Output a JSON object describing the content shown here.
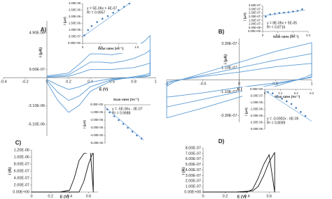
{
  "chart_data": [
    {
      "type": "line",
      "panel": "A)",
      "xlabel": "E (V)",
      "ylabel": "i (μA)",
      "xlim": [
        -0.4,
        1
      ],
      "xticks": [
        -0.4,
        -0.2,
        0,
        0.2,
        0.4,
        0.6,
        0.8,
        1
      ],
      "ylim": [
        -6.4e-06,
        6.2e-06
      ],
      "yticks": [
        {
          "value": 4.9e-06,
          "label": "4.90E-06"
        },
        {
          "value": 9e-07,
          "label": "9.00E-07"
        },
        {
          "value": -3.1e-06,
          "label": "-3.10E-06"
        },
        {
          "value": -5.1e-06,
          "label": "-5.10E-06"
        }
      ],
      "series": [
        {
          "color": "#5b9bd5",
          "x": [
            0,
            0.2,
            0.3,
            0.4,
            0.5,
            0.6,
            0.7,
            0.8,
            0.9,
            0.95,
            0.95,
            0.9,
            0.8,
            0.6,
            0.4,
            0.3,
            0.2,
            0.1,
            0
          ],
          "values": [
            2e-07,
            5e-07,
            1.5e-06,
            2.6e-06,
            2.6e-06,
            2.5e-06,
            2.7e-06,
            3.2e-06,
            4e-06,
            4.6e-06,
            5e-07,
            3e-07,
            1e-07,
            -3e-07,
            -1.5e-06,
            -3e-06,
            -3.8e-06,
            -2.5e-06,
            -5e-07
          ]
        },
        {
          "color": "#5b9bd5",
          "x": [
            0,
            0.2,
            0.3,
            0.4,
            0.5,
            0.6,
            0.7,
            0.8,
            0.9,
            0.95,
            0.95,
            0.9,
            0.8,
            0.6,
            0.4,
            0.3,
            0.2,
            0.1,
            0
          ],
          "values": [
            1e-07,
            3e-07,
            1e-06,
            1.7e-06,
            1.7e-06,
            1.6e-06,
            1.8e-06,
            2.1e-06,
            2.6e-06,
            3e-06,
            3e-07,
            2e-07,
            0,
            -2e-07,
            -1e-06,
            -2e-06,
            -2.5e-06,
            -1.6e-06,
            -3e-07
          ]
        },
        {
          "color": "#5b9bd5",
          "x": [
            0,
            0.2,
            0.3,
            0.4,
            0.5,
            0.6,
            0.7,
            0.8,
            0.9,
            0.95,
            0.95,
            0.9,
            0.8,
            0.6,
            0.4,
            0.3,
            0.2,
            0.1,
            0
          ],
          "values": [
            5e-08,
            1.5e-07,
            5e-07,
            9e-07,
            9e-07,
            9e-07,
            1e-06,
            1.1e-06,
            1.4e-06,
            1.6e-06,
            2e-07,
            1e-07,
            0,
            -1e-07,
            -5e-07,
            -1e-06,
            -1.3e-06,
            -8e-07,
            -2e-07
          ]
        }
      ]
    },
    {
      "type": "scatter",
      "xlabel": "Scan rates (Vs⁻¹)",
      "ylabel": "i (μA)",
      "annotations": [
        "y = 5E-06x + 4E-07",
        "R² = 0.9957"
      ],
      "xlim": [
        0,
        1.5
      ],
      "xticks": [
        0,
        0.5,
        1,
        1.5
      ],
      "ylim": [
        0,
        3e-06
      ],
      "yticks": [
        {
          "value": 0,
          "label": "0.00E+00"
        },
        {
          "value": 5e-07,
          "label": "5.00E-07"
        },
        {
          "value": 1e-06,
          "label": "1.00E-06"
        },
        {
          "value": 1.5e-06,
          "label": "1.50E-06"
        },
        {
          "value": 2e-06,
          "label": "2.00E-06"
        },
        {
          "value": 2.5e-06,
          "label": "2.50E-06"
        },
        {
          "value": 3e-06,
          "label": "3.00E-06"
        }
      ],
      "series": [
        {
          "color": "#4a7ebb",
          "x": [
            0.05,
            0.15,
            0.25,
            0.4,
            0.55,
            0.7,
            0.85,
            1,
            1.15,
            1.3
          ],
          "values": [
            6e-07,
            1e-06,
            1.3e-06,
            1.6e-06,
            1.85e-06,
            2.05e-06,
            2.3e-06,
            2.5e-06,
            2.75e-06,
            3e-06
          ]
        }
      ],
      "trendline": {
        "color": "#5b9bd5",
        "x": [
          0,
          1.3
        ],
        "values": [
          5e-07,
          3e-06
        ]
      }
    },
    {
      "type": "scatter",
      "xlabel": "Scan rates (Vs⁻¹)",
      "ylabel": "i (μA)",
      "annotations": [
        "y = -5E-06x - 3E-07",
        "R² = 0.9988"
      ],
      "xlim": [
        0,
        1
      ],
      "ylim": [
        -5e-06,
        0
      ],
      "yticks": [
        {
          "value": 0,
          "label": "0.00E+00"
        },
        {
          "value": -1e-06,
          "label": "-1.00E-06"
        },
        {
          "value": -2e-06,
          "label": "-2.00E-06"
        },
        {
          "value": -3e-06,
          "label": "-3.00E-06"
        },
        {
          "value": -4e-06,
          "label": "-4.00E-06"
        },
        {
          "value": -5e-06,
          "label": "-5.00E-06"
        }
      ],
      "series": [
        {
          "color": "#4a7ebb",
          "x": [
            0.05,
            0.1,
            0.2,
            0.3,
            0.4,
            0.5,
            0.6,
            0.7,
            0.8
          ],
          "values": [
            -6e-07,
            -1e-06,
            -1.5e-06,
            -2e-06,
            -2.5e-06,
            -3e-06,
            -3.5e-06,
            -4e-06,
            -4.4e-06
          ]
        }
      ],
      "trendline": {
        "color": "#5b9bd5",
        "x": [
          0,
          0.85
        ],
        "values": [
          -3e-07,
          -4.6e-06
        ]
      }
    },
    {
      "type": "line",
      "panel": "B)",
      "xlabel": "E (V)",
      "ylabel": "i (μA)",
      "xlim": [
        -1,
        1
      ],
      "xticks": [
        -1,
        -0.5,
        0,
        0.5,
        1
      ],
      "ylim": [
        -3.9e-07,
        3.8e-07
      ],
      "yticks": [
        {
          "value": 3.3e-07,
          "label": "3.30E-07"
        },
        {
          "value": 1.1e-07,
          "label": "1.10E-07"
        },
        {
          "value": -1.1e-07,
          "label": "-1.10E-07"
        },
        {
          "value": -3.3e-07,
          "label": "-3.30E-07"
        }
      ],
      "series": [
        {
          "color": "#5b9bd5",
          "x": [
            -1,
            -0.5,
            0,
            0.5,
            0.9,
            1,
            1,
            0.5,
            0,
            -0.5,
            -0.9,
            -1,
            -1
          ],
          "values": [
            -3.5e-07,
            -2.6e-07,
            -1.6e-07,
            -6e-08,
            2e-08,
            5e-08,
            3.4e-07,
            2.6e-07,
            1.6e-07,
            6e-08,
            -2e-08,
            -6e-08,
            -3.5e-07
          ]
        },
        {
          "color": "#5b9bd5",
          "x": [
            -1,
            -0.5,
            0,
            0.5,
            0.9,
            1,
            1,
            0.5,
            0,
            -0.5,
            -0.9,
            -1,
            -1
          ],
          "values": [
            -2.5e-07,
            -1.8e-07,
            -1.1e-07,
            -4e-08,
            1e-08,
            3e-08,
            2.4e-07,
            1.8e-07,
            1.1e-07,
            4e-08,
            -1e-08,
            -4e-08,
            -2.5e-07
          ]
        },
        {
          "color": "#5b9bd5",
          "x": [
            -1,
            -0.5,
            0,
            0.5,
            0.9,
            1,
            1,
            0.5,
            0,
            -0.5,
            -0.9,
            -1,
            -1
          ],
          "values": [
            -1.6e-07,
            -1.2e-07,
            -7e-08,
            -3e-08,
            1e-08,
            2e-08,
            1.5e-07,
            1.2e-07,
            7e-08,
            3e-08,
            -1e-08,
            -2e-08,
            -1.6e-07
          ]
        }
      ]
    },
    {
      "type": "scatter",
      "xlabel": "Scan rates (Vs⁻¹)",
      "ylabel": "i (μA)",
      "annotations": [
        "y = 8E-05x + 5E-05",
        "R² = 0.8716"
      ],
      "xlim": [
        0,
        0.3
      ],
      "xticks": [
        0,
        0.1,
        0.2,
        0.3
      ],
      "ylim": [
        0,
        3.5e-07
      ],
      "yticks": [
        {
          "value": 0,
          "label": "0.00E+00"
        },
        {
          "value": 5e-08,
          "label": "5.00E-08"
        },
        {
          "value": 1e-07,
          "label": "1.00E-07"
        },
        {
          "value": 1.5e-07,
          "label": "1.50E-07"
        },
        {
          "value": 2e-07,
          "label": "2.00E-07"
        },
        {
          "value": 2.5e-07,
          "label": "2.50E-07"
        },
        {
          "value": 3e-07,
          "label": "3.00E-07"
        },
        {
          "value": 3.5e-07,
          "label": "3.50E-07"
        }
      ],
      "series": [
        {
          "color": "#4a7ebb",
          "x": [
            0.02,
            0.05,
            0.08,
            0.11,
            0.14,
            0.17,
            0.2,
            0.23,
            0.26
          ],
          "values": [
            2e-07,
            2.3e-07,
            2.4e-07,
            2.5e-07,
            2.55e-07,
            2.6e-07,
            2.7e-07,
            2.8e-07,
            3e-07
          ]
        }
      ],
      "trendline": {
        "color": "#5b9bd5",
        "x": [
          0,
          0.28
        ],
        "values": [
          2.1e-07,
          2.9e-07
        ]
      }
    },
    {
      "type": "scatter",
      "xlabel": "Scan rates (Vs⁻¹)",
      "ylabel": "i (μA)",
      "annotations": [
        "y = -0.0002x - 6E-05",
        "R² = 0.8099"
      ],
      "xlim": [
        0,
        0.3
      ],
      "xticks": [
        0,
        0.1,
        0.2,
        0.3
      ],
      "ylim": [
        -3e-06,
        0
      ],
      "yticks": [
        {
          "value": 0,
          "label": "0.00E+00"
        },
        {
          "value": -5e-07,
          "label": "-5.00E-07"
        },
        {
          "value": -1e-06,
          "label": "-1.00E-06"
        },
        {
          "value": -1.5e-06,
          "label": "-1.50E-06"
        },
        {
          "value": -2e-06,
          "label": "-2.00E-06"
        },
        {
          "value": -2.5e-06,
          "label": "-2.50E-06"
        },
        {
          "value": -3e-06,
          "label": "-3.00E-06"
        }
      ],
      "series": [
        {
          "color": "#4a7ebb",
          "x": [
            0.02,
            0.05,
            0.08,
            0.11,
            0.14,
            0.17,
            0.2,
            0.23,
            0.26
          ],
          "values": [
            -2e-07,
            -3e-07,
            -5e-07,
            -7e-07,
            -9e-07,
            -1.1e-06,
            -1.4e-06,
            -1.7e-06,
            -2e-06
          ]
        }
      ],
      "trendline": {
        "color": "#5b9bd5",
        "x": [
          0,
          0.3
        ],
        "values": [
          -1e-07,
          -2.4e-06
        ]
      }
    },
    {
      "type": "line",
      "panel": "C)",
      "xlabel": "E (V)",
      "ylabel": "i (A)",
      "xlim": [
        0,
        0.7
      ],
      "xticks": [
        0,
        0.2,
        0.4,
        0.6
      ],
      "ylim": [
        0,
        1.2e-06
      ],
      "yticks": [
        {
          "value": 0,
          "label": "0.00E+00"
        },
        {
          "value": 2e-07,
          "label": "2.00E-07"
        },
        {
          "value": 4e-07,
          "label": "4.00E-07"
        },
        {
          "value": 6e-07,
          "label": "6.00E-07"
        },
        {
          "value": 8e-07,
          "label": "8.00E-07"
        },
        {
          "value": 1e-06,
          "label": "1.00E-06"
        },
        {
          "value": 1.2e-06,
          "label": "1.20E-06"
        }
      ],
      "series": [
        {
          "color": "#111111",
          "x": [
            0,
            0.3,
            0.5,
            0.55,
            0.6,
            0.65,
            0.65,
            0.62,
            0.55,
            0.5,
            0.45,
            0.4,
            0.3,
            0
          ],
          "values": [
            0,
            0,
            0,
            3e-07,
            8e-07,
            1.17e-06,
            0,
            1.15e-06,
            1.1e-06,
            9e-07,
            4e-07,
            5e-08,
            0,
            0
          ]
        }
      ]
    },
    {
      "type": "line",
      "panel": "D)",
      "xlabel": "E (V)",
      "ylabel": "i (A)",
      "xlim": [
        0,
        0.7
      ],
      "xticks": [
        0,
        0.2,
        0.4,
        0.6
      ],
      "ylim": [
        0,
        8e-07
      ],
      "yticks": [
        {
          "value": 0,
          "label": "0.00E+00"
        },
        {
          "value": 1e-07,
          "label": "1.00E-07"
        },
        {
          "value": 2e-07,
          "label": "2.00E-07"
        },
        {
          "value": 3e-07,
          "label": "3.00E-07"
        },
        {
          "value": 4e-07,
          "label": "4.00E-07"
        },
        {
          "value": 5e-07,
          "label": "5.00E-07"
        },
        {
          "value": 6e-07,
          "label": "6.00E-07"
        },
        {
          "value": 7e-07,
          "label": "7.00E-07"
        },
        {
          "value": 8e-07,
          "label": "8.00E-07"
        }
      ],
      "series": [
        {
          "color": "#111111",
          "x": [
            0,
            0.3,
            0.45,
            0.5,
            0.55,
            0.6,
            0.65,
            0.65,
            0.6,
            0.55,
            0.5,
            0.45,
            0.4,
            0
          ],
          "values": [
            0,
            0,
            2e-08,
            1e-07,
            3e-07,
            5.5e-07,
            7.2e-07,
            0,
            6.8e-07,
            5e-07,
            2.5e-07,
            5e-08,
            0,
            0
          ]
        }
      ]
    }
  ]
}
